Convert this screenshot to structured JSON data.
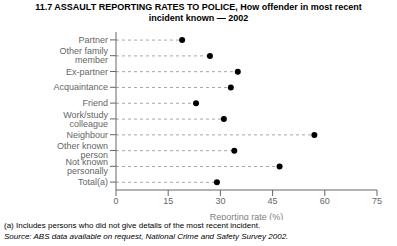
{
  "chart_data": {
    "type": "dot",
    "orientation": "horizontal",
    "title": "11.7  ASSAULT REPORTING RATES TO POLICE, How offender in most recent\nincident known — 2002",
    "categories": [
      "Partner",
      "Other family member",
      "Ex-partner",
      "Acquaintance",
      "Friend",
      "Work/study colleague",
      "Neighbour",
      "Other known person",
      "Not known personally",
      "Total(a)"
    ],
    "values": [
      19,
      27,
      35,
      33,
      23,
      31,
      57,
      34,
      47,
      29
    ],
    "xlim": [
      0,
      75
    ],
    "xticks": [
      0,
      15,
      30,
      45,
      60,
      75
    ],
    "xlabel": "Reporting rate (%)",
    "annotations": [
      "(a) Includes persons who did not give details of the most recent incident.",
      "Source: ABS data available on request, National Crime and Safety Survey 2002."
    ],
    "color": "#000000",
    "line_style": "dashed",
    "marker": "circle",
    "grid": false
  }
}
